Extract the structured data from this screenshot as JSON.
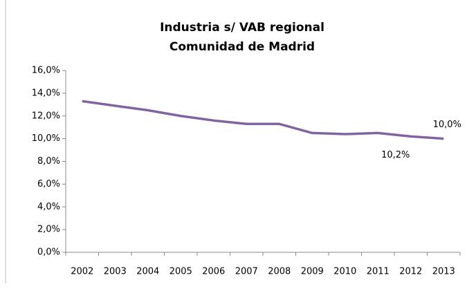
{
  "chart_data": {
    "type": "line",
    "title": [
      "Industria s/ VAB regional",
      "Comunidad de Madrid"
    ],
    "categories": [
      "2002",
      "2003",
      "2004",
      "2005",
      "2006",
      "2007",
      "2008",
      "2009",
      "2010",
      "2011",
      "2012",
      "2013"
    ],
    "series": [
      {
        "name": "Industria s/ VAB regional",
        "color": "#8064a2",
        "values": [
          13.3,
          12.9,
          12.5,
          12.0,
          11.6,
          11.3,
          11.3,
          10.5,
          10.4,
          10.5,
          10.2,
          10.0
        ],
        "value_labels": [
          null,
          null,
          null,
          null,
          null,
          null,
          null,
          null,
          null,
          null,
          "10,2%",
          "10,0%"
        ]
      }
    ],
    "ylim": [
      0,
      16
    ],
    "yticks": [
      {
        "value": 0,
        "label": "0,0%"
      },
      {
        "value": 2,
        "label": "2,0%"
      },
      {
        "value": 4,
        "label": "4,0%"
      },
      {
        "value": 6,
        "label": "6,0%"
      },
      {
        "value": 8,
        "label": "8,0%"
      },
      {
        "value": 10,
        "label": "10,0%"
      },
      {
        "value": 12,
        "label": "12,0%"
      },
      {
        "value": 14,
        "label": "14,0%"
      },
      {
        "value": 16,
        "label": "16,0%"
      }
    ],
    "grid": false
  }
}
